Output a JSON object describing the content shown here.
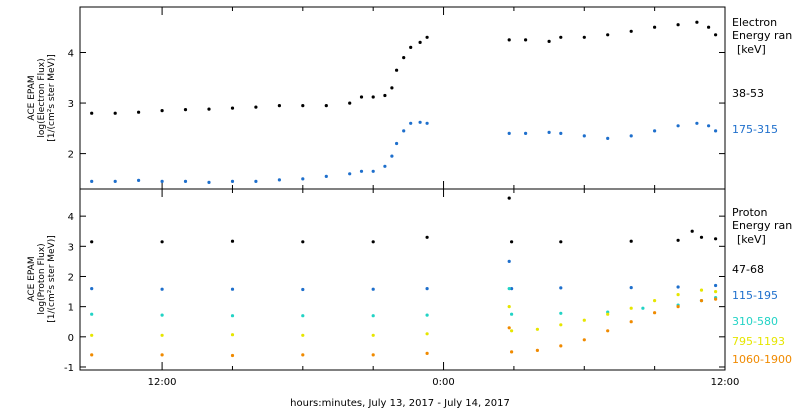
{
  "chart_data": [
    {
      "type": "scatter",
      "panel": "electron",
      "ylabel": [
        "ACE EPAM",
        "log(Electron Flux)",
        "[1/(cm²s ster MeV)]"
      ],
      "legend_title": [
        "Electron",
        "Energy ran",
        "[keV]"
      ],
      "xlim": [
        8.5,
        36.0
      ],
      "ylim": [
        1.3,
        4.9
      ],
      "yticks": [
        2,
        3,
        4
      ],
      "grid": false,
      "legend_placement": "right",
      "series": [
        {
          "name": "38-53",
          "color": "#000000",
          "points": [
            [
              9.0,
              2.8
            ],
            [
              10.0,
              2.8
            ],
            [
              11.0,
              2.82
            ],
            [
              12.0,
              2.85
            ],
            [
              13.0,
              2.87
            ],
            [
              14.0,
              2.88
            ],
            [
              15.0,
              2.9
            ],
            [
              16.0,
              2.92
            ],
            [
              17.0,
              2.95
            ],
            [
              18.0,
              2.95
            ],
            [
              19.0,
              2.95
            ],
            [
              20.0,
              3.0
            ],
            [
              20.5,
              3.12
            ],
            [
              21.0,
              3.12
            ],
            [
              21.5,
              3.15
            ],
            [
              21.8,
              3.3
            ],
            [
              22.0,
              3.65
            ],
            [
              22.3,
              3.9
            ],
            [
              22.6,
              4.1
            ],
            [
              23.0,
              4.2
            ],
            [
              23.3,
              4.3
            ],
            [
              26.8,
              4.25
            ],
            [
              27.5,
              4.25
            ],
            [
              28.5,
              4.22
            ],
            [
              29.0,
              4.3
            ],
            [
              30.0,
              4.3
            ],
            [
              31.0,
              4.35
            ],
            [
              32.0,
              4.42
            ],
            [
              33.0,
              4.5
            ],
            [
              34.0,
              4.55
            ],
            [
              34.8,
              4.6
            ],
            [
              35.3,
              4.5
            ],
            [
              35.6,
              4.35
            ]
          ]
        },
        {
          "name": "175-315",
          "color": "#1e6fcc",
          "points": [
            [
              9.0,
              1.45
            ],
            [
              10.0,
              1.45
            ],
            [
              11.0,
              1.47
            ],
            [
              12.0,
              1.45
            ],
            [
              13.0,
              1.45
            ],
            [
              14.0,
              1.43
            ],
            [
              15.0,
              1.45
            ],
            [
              16.0,
              1.45
            ],
            [
              17.0,
              1.48
            ],
            [
              18.0,
              1.5
            ],
            [
              19.0,
              1.55
            ],
            [
              20.0,
              1.6
            ],
            [
              20.5,
              1.65
            ],
            [
              21.0,
              1.65
            ],
            [
              21.5,
              1.75
            ],
            [
              21.8,
              1.95
            ],
            [
              22.0,
              2.2
            ],
            [
              22.3,
              2.45
            ],
            [
              22.6,
              2.6
            ],
            [
              23.0,
              2.62
            ],
            [
              23.3,
              2.6
            ],
            [
              26.8,
              2.4
            ],
            [
              27.5,
              2.4
            ],
            [
              28.5,
              2.42
            ],
            [
              29.0,
              2.4
            ],
            [
              30.0,
              2.35
            ],
            [
              31.0,
              2.3
            ],
            [
              32.0,
              2.35
            ],
            [
              33.0,
              2.45
            ],
            [
              34.0,
              2.55
            ],
            [
              34.8,
              2.6
            ],
            [
              35.3,
              2.55
            ],
            [
              35.6,
              2.45
            ]
          ]
        }
      ]
    },
    {
      "type": "scatter",
      "panel": "proton",
      "ylabel": [
        "ACE EPAM",
        "log(Proton Flux)",
        "[1/(cm²s ster MeV)]"
      ],
      "legend_title": [
        "Proton",
        "Energy ran",
        "[keV]"
      ],
      "xlabel": "hours:minutes, July 13, 2017 - July 14, 2017",
      "xlim": [
        8.5,
        36.0
      ],
      "ylim": [
        -1.1,
        4.9
      ],
      "yticks": [
        -1,
        0,
        1,
        2,
        3,
        4
      ],
      "xticks": [
        {
          "value": 12,
          "label": "12:00"
        },
        {
          "value": 24,
          "label": "0:00"
        },
        {
          "value": 36,
          "label": "12:00"
        }
      ],
      "grid": false,
      "legend_placement": "right",
      "series": [
        {
          "name": "47-68",
          "color": "#000000",
          "points": [
            [
              9.0,
              3.15
            ],
            [
              12.0,
              3.15
            ],
            [
              15.0,
              3.17
            ],
            [
              18.0,
              3.15
            ],
            [
              21.0,
              3.15
            ],
            [
              23.3,
              3.3
            ],
            [
              26.8,
              4.6
            ],
            [
              26.9,
              3.15
            ],
            [
              29.0,
              3.15
            ],
            [
              32.0,
              3.17
            ],
            [
              34.0,
              3.2
            ],
            [
              34.6,
              3.5
            ],
            [
              35.0,
              3.3
            ],
            [
              35.6,
              3.25
            ]
          ]
        },
        {
          "name": "115-195",
          "color": "#1e6fcc",
          "points": [
            [
              9.0,
              1.6
            ],
            [
              12.0,
              1.58
            ],
            [
              15.0,
              1.58
            ],
            [
              18.0,
              1.57
            ],
            [
              21.0,
              1.58
            ],
            [
              23.3,
              1.6
            ],
            [
              26.8,
              2.5
            ],
            [
              26.9,
              1.6
            ],
            [
              29.0,
              1.62
            ],
            [
              32.0,
              1.63
            ],
            [
              34.0,
              1.65
            ],
            [
              35.6,
              1.7
            ]
          ]
        },
        {
          "name": "310-580",
          "color": "#22d3c5",
          "points": [
            [
              9.0,
              0.75
            ],
            [
              12.0,
              0.72
            ],
            [
              15.0,
              0.7
            ],
            [
              18.0,
              0.7
            ],
            [
              21.0,
              0.7
            ],
            [
              23.3,
              0.72
            ],
            [
              26.8,
              1.6
            ],
            [
              26.9,
              0.75
            ],
            [
              29.0,
              0.78
            ],
            [
              31.0,
              0.82
            ],
            [
              32.5,
              0.95
            ],
            [
              34.0,
              1.05
            ],
            [
              35.0,
              1.2
            ],
            [
              35.6,
              1.3
            ]
          ]
        },
        {
          "name": "795-1193",
          "color": "#e6e600",
          "points": [
            [
              9.0,
              0.05
            ],
            [
              12.0,
              0.05
            ],
            [
              15.0,
              0.07
            ],
            [
              18.0,
              0.05
            ],
            [
              21.0,
              0.05
            ],
            [
              23.3,
              0.1
            ],
            [
              26.8,
              1.0
            ],
            [
              26.9,
              0.2
            ],
            [
              28.0,
              0.25
            ],
            [
              29.0,
              0.4
            ],
            [
              30.0,
              0.55
            ],
            [
              31.0,
              0.75
            ],
            [
              32.0,
              0.95
            ],
            [
              33.0,
              1.2
            ],
            [
              34.0,
              1.4
            ],
            [
              35.0,
              1.55
            ],
            [
              35.6,
              1.5
            ]
          ]
        },
        {
          "name": "1060-1900",
          "color": "#f08a00",
          "points": [
            [
              9.0,
              -0.6
            ],
            [
              12.0,
              -0.6
            ],
            [
              15.0,
              -0.62
            ],
            [
              18.0,
              -0.6
            ],
            [
              21.0,
              -0.6
            ],
            [
              23.3,
              -0.55
            ],
            [
              26.8,
              0.3
            ],
            [
              26.9,
              -0.5
            ],
            [
              28.0,
              -0.45
            ],
            [
              29.0,
              -0.3
            ],
            [
              30.0,
              -0.1
            ],
            [
              31.0,
              0.2
            ],
            [
              32.0,
              0.5
            ],
            [
              33.0,
              0.8
            ],
            [
              34.0,
              1.0
            ],
            [
              35.0,
              1.2
            ],
            [
              35.6,
              1.25
            ]
          ]
        }
      ]
    }
  ]
}
